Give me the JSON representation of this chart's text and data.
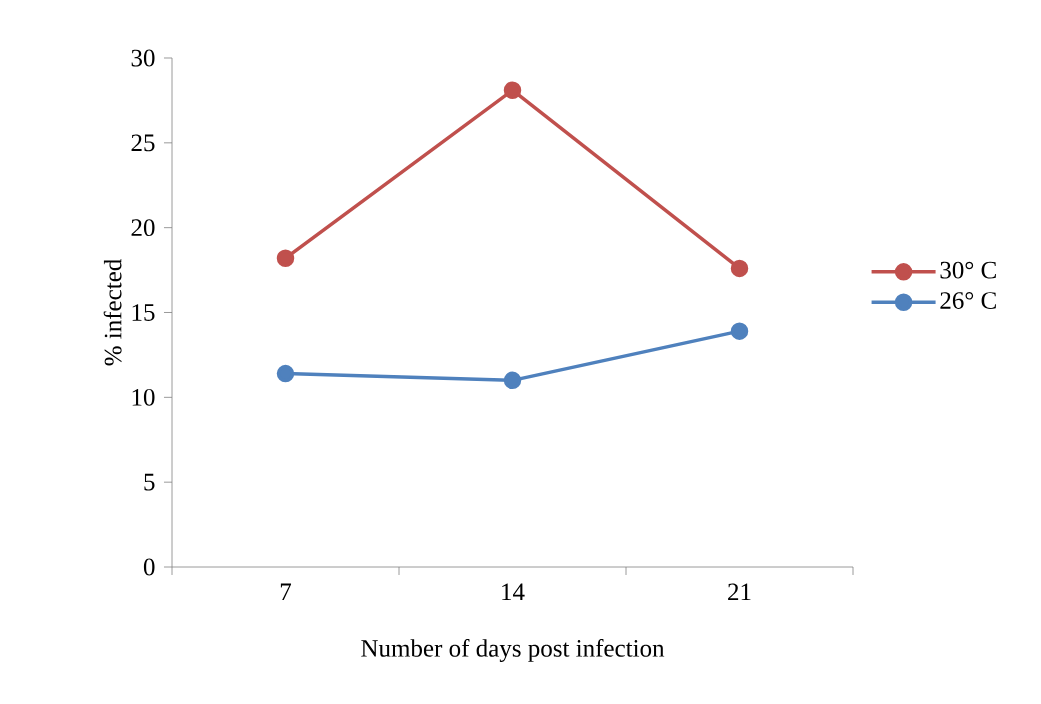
{
  "chart_data": {
    "type": "line",
    "categories": [
      "7",
      "14",
      "21"
    ],
    "series": [
      {
        "name": "30° C",
        "color": "#c0504d",
        "values": [
          18.2,
          28.1,
          17.6
        ]
      },
      {
        "name": "26° C",
        "color": "#4f81bd",
        "values": [
          11.4,
          11.0,
          13.9
        ]
      }
    ],
    "ylim": [
      0,
      30
    ],
    "yticks": [
      0,
      5,
      10,
      15,
      20,
      25,
      30
    ],
    "xlabel": "Number of days post infection",
    "ylabel": "% infected",
    "legend": "right",
    "marker": "circle",
    "line_style": "solid"
  }
}
